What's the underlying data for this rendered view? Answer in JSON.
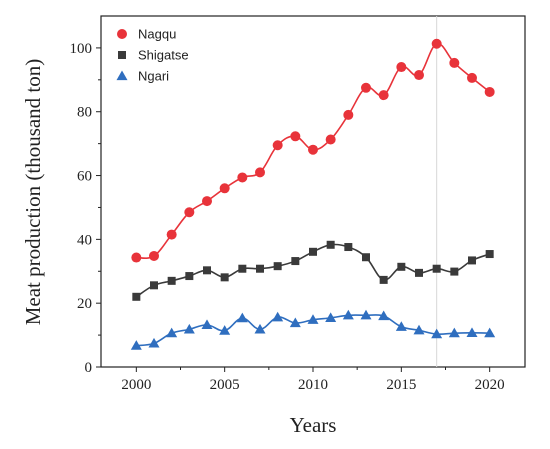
{
  "chart_data": {
    "type": "line",
    "title": "",
    "xlabel": "Years",
    "ylabel": "Meat production (thousand ton)",
    "xlim": [
      1998,
      2022
    ],
    "ylim": [
      0,
      110
    ],
    "xticks": [
      2000,
      2005,
      2010,
      2015,
      2020
    ],
    "yticks": [
      0,
      20,
      40,
      60,
      80,
      100
    ],
    "legend_position": "top-left",
    "grid": false,
    "x": [
      2000,
      2001,
      2002,
      2003,
      2004,
      2005,
      2006,
      2007,
      2008,
      2009,
      2010,
      2011,
      2012,
      2013,
      2014,
      2015,
      2016,
      2017,
      2018,
      2019,
      2020
    ],
    "reference_line_x": 2017,
    "series": [
      {
        "name": "Nagqu",
        "color": "#e8333a",
        "marker": "circle",
        "values": [
          34.3,
          34.8,
          41.5,
          48.5,
          52.0,
          56.0,
          59.4,
          61.0,
          69.5,
          72.3,
          68.1,
          71.3,
          79.0,
          87.5,
          85.2,
          94.0,
          91.5,
          101.3,
          95.3,
          90.6,
          86.2
        ]
      },
      {
        "name": "Shigatse",
        "color": "#3a3a3a",
        "marker": "square",
        "values": [
          22.0,
          25.6,
          27.0,
          28.5,
          30.3,
          28.1,
          30.8,
          30.8,
          31.6,
          33.2,
          36.1,
          38.3,
          37.6,
          34.4,
          27.3,
          31.4,
          29.5,
          30.8,
          29.9,
          33.4,
          35.4
        ]
      },
      {
        "name": "Ngari",
        "color": "#2f6ebf",
        "marker": "triangle",
        "values": [
          6.7,
          7.4,
          10.6,
          11.8,
          13.2,
          11.4,
          15.3,
          11.8,
          15.6,
          13.8,
          14.8,
          15.4,
          16.2,
          16.2,
          16.0,
          12.6,
          11.5,
          10.3,
          10.6,
          10.7,
          10.6
        ]
      }
    ]
  }
}
